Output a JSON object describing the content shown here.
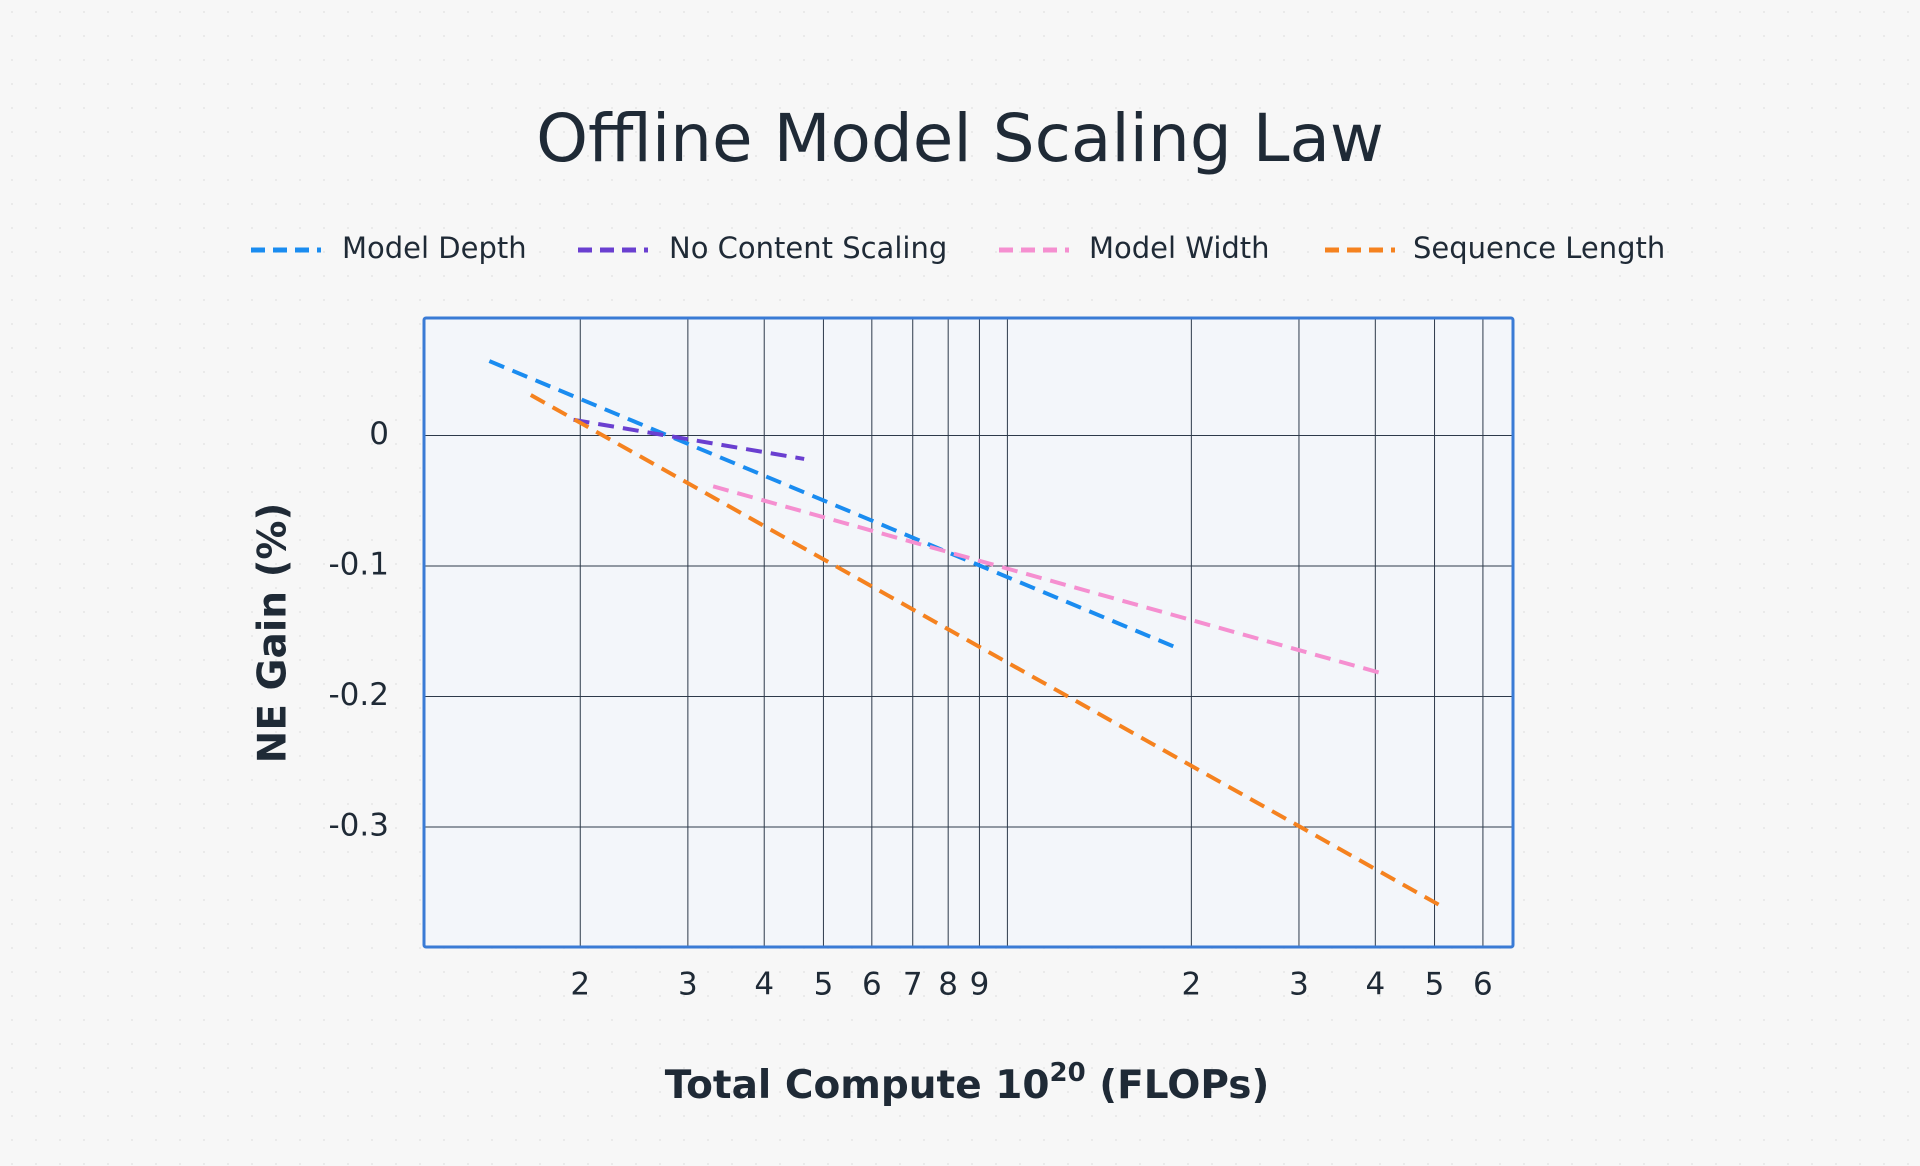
{
  "chart_data": {
    "type": "line",
    "title": "Offline Model Scaling Law",
    "y_label": "NE Gain (%)",
    "x_label": {
      "text": "Total Compute 10",
      "exponent": "20",
      "unit": " (FLOPs)"
    },
    "xscale": "log",
    "xlim": [
      1.11,
      67.2
    ],
    "xticks": [
      2,
      3,
      4,
      5,
      6,
      7,
      8,
      9,
      {
        "value": 20,
        "label": "2"
      },
      {
        "value": 30,
        "label": "3"
      },
      {
        "value": 40,
        "label": "4"
      },
      {
        "value": 50,
        "label": "5"
      },
      {
        "value": 60,
        "label": "6"
      }
    ],
    "xgrid_extra": [
      10
    ],
    "ylim": [
      -0.392,
      0.09
    ],
    "yticks": [
      0,
      -0.1,
      -0.2,
      -0.3
    ],
    "grid": true,
    "legend": "top",
    "series": [
      {
        "name": "Model Depth",
        "color": "#1a8cf0",
        "x": [
          1.42,
          19.0
        ],
        "values": [
          0.057,
          -0.163
        ]
      },
      {
        "name": "No Content Scaling",
        "color": "#6a3fd0",
        "x": [
          1.95,
          4.65
        ],
        "values": [
          0.012,
          -0.018
        ]
      },
      {
        "name": "Model Width",
        "color": "#f58fd0",
        "x": [
          3.3,
          40.8
        ],
        "values": [
          -0.039,
          -0.182
        ]
      },
      {
        "name": "Sequence Length",
        "color": "#f5821f",
        "x": [
          1.66,
          51.9
        ],
        "values": [
          0.031,
          -0.362
        ]
      }
    ]
  }
}
